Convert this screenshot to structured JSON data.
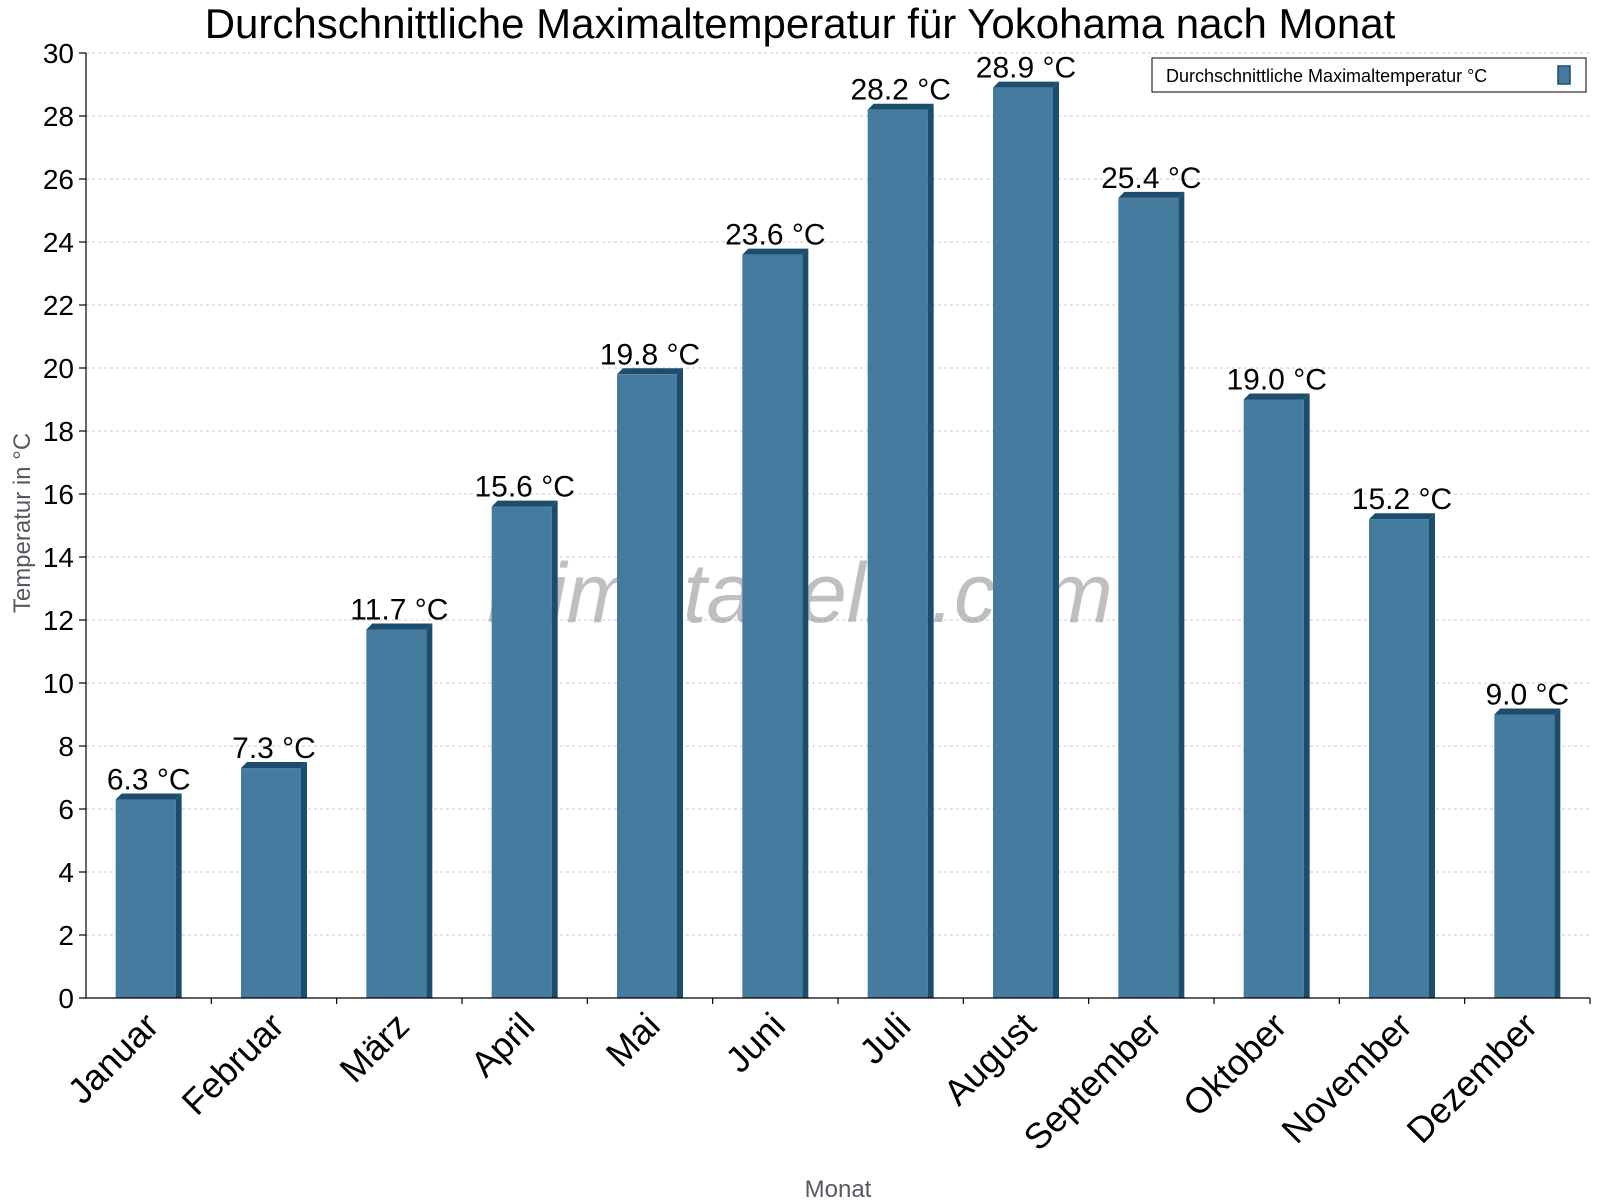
{
  "chart_data": {
    "type": "bar",
    "title": "Durchschnittliche Maximaltemperatur für Yokohama nach Monat",
    "xlabel": "Monat",
    "ylabel": "Temperatur in °C",
    "ylim": [
      0,
      30
    ],
    "yticks": [
      0,
      2,
      4,
      6,
      8,
      10,
      12,
      14,
      16,
      18,
      20,
      22,
      24,
      26,
      28,
      30
    ],
    "grid": true,
    "legend_position": "top-right",
    "categories": [
      "Januar",
      "Februar",
      "März",
      "April",
      "Mai",
      "Juni",
      "Juli",
      "August",
      "September",
      "Oktober",
      "November",
      "Dezember"
    ],
    "series": [
      {
        "name": "Durchschnittliche Maximaltemperatur °C",
        "values": [
          6.3,
          7.3,
          11.7,
          15.6,
          19.8,
          23.6,
          28.2,
          28.9,
          25.4,
          19.0,
          15.2,
          9.0
        ],
        "labels": [
          "6.3 °C",
          "7.3 °C",
          "11.7 °C",
          "15.6 °C",
          "19.8 °C",
          "23.6 °C",
          "28.2 °C",
          "28.9 °C",
          "25.4 °C",
          "19.0 °C",
          "15.2 °C",
          "9.0 °C"
        ],
        "color": "#447b9e",
        "edge_color": "#1d4d6e"
      }
    ]
  },
  "watermark": "klimatabelle.com"
}
